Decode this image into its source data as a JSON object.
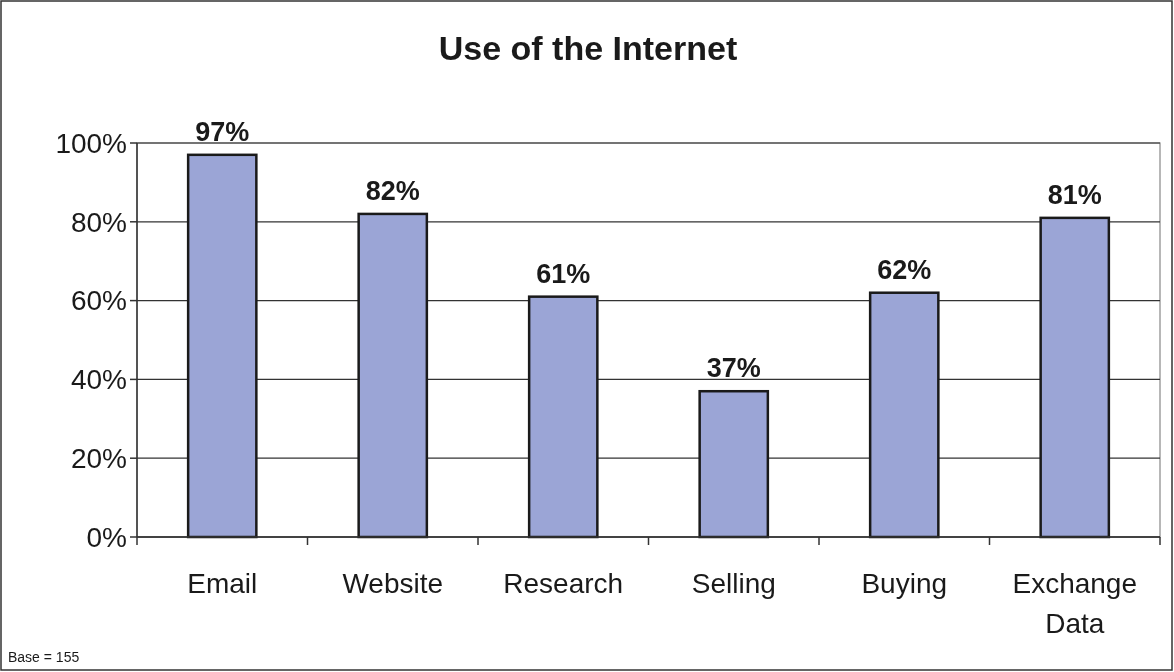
{
  "chart_data": {
    "type": "bar",
    "title": "Use of the Internet",
    "categories": [
      "Email",
      "Website",
      "Research",
      "Selling",
      "Buying",
      "Exchange Data"
    ],
    "values": [
      97,
      82,
      61,
      37,
      62,
      81
    ],
    "value_labels": [
      "97%",
      "82%",
      "61%",
      "37%",
      "62%",
      "81%"
    ],
    "color": "#9ba5d6",
    "ylim": [
      0,
      100
    ],
    "yticks": [
      {
        "value": 0,
        "label": "0%"
      },
      {
        "value": 20,
        "label": "20%"
      },
      {
        "value": 40,
        "label": "40%"
      },
      {
        "value": 60,
        "label": "60%"
      },
      {
        "value": 80,
        "label": "80%"
      },
      {
        "value": 100,
        "label": "100%"
      }
    ],
    "grid": "y",
    "annotations": [
      "Base = 155"
    ]
  }
}
